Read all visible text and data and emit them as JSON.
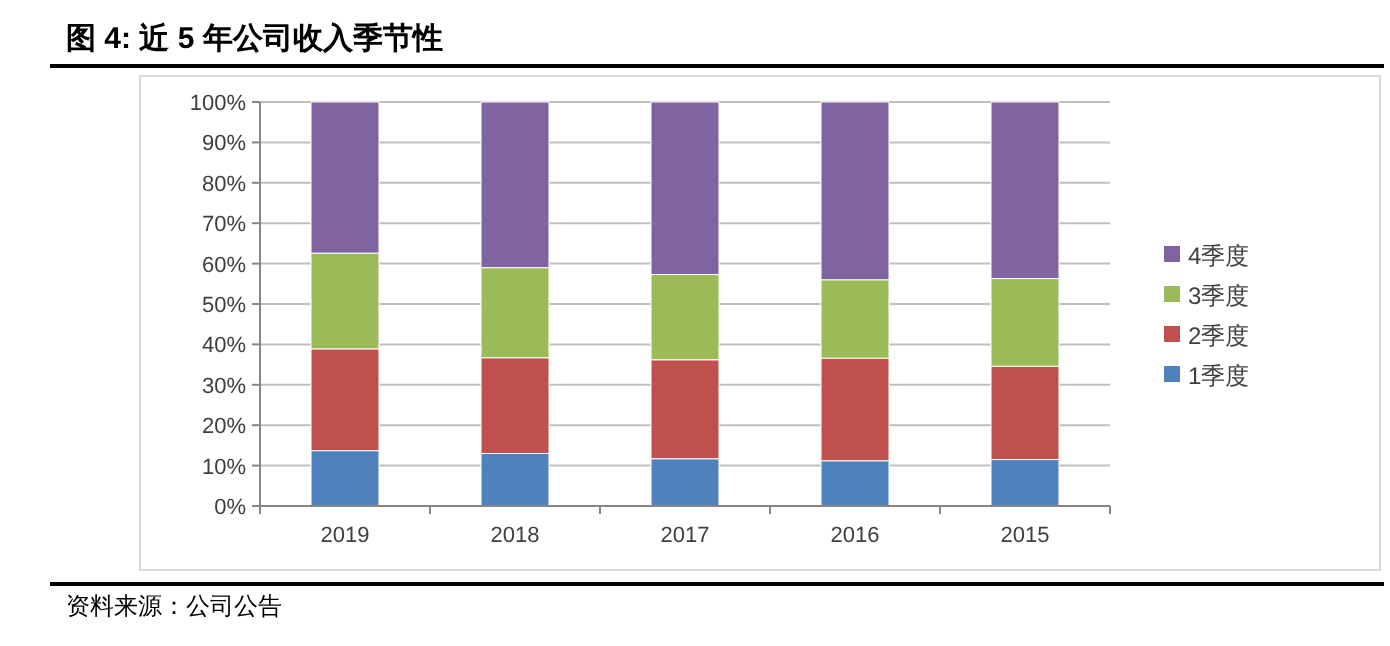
{
  "chart_data": {
    "type": "bar",
    "title": "图 4:  近 5 年公司收入季节性",
    "stacked": true,
    "categories": [
      "2019",
      "2018",
      "2017",
      "2016",
      "2015"
    ],
    "series": [
      {
        "name": "1季度",
        "color": "#4f81bd",
        "values": [
          13.7,
          13.0,
          11.7,
          11.2,
          11.5
        ]
      },
      {
        "name": "2季度",
        "color": "#c0504d",
        "values": [
          25.2,
          23.7,
          24.5,
          25.4,
          23.1
        ]
      },
      {
        "name": "3季度",
        "color": "#9bbb59",
        "values": [
          23.7,
          22.3,
          21.1,
          19.4,
          21.7
        ]
      },
      {
        "name": "4季度",
        "color": "#8064a2",
        "values": [
          37.4,
          41.0,
          42.7,
          44.0,
          43.7
        ]
      }
    ],
    "ylim": [
      0,
      100
    ],
    "yticks": [
      {
        "value": 0,
        "label": "0%"
      },
      {
        "value": 10,
        "label": "10%"
      },
      {
        "value": 20,
        "label": "20%"
      },
      {
        "value": 30,
        "label": "30%"
      },
      {
        "value": 40,
        "label": "40%"
      },
      {
        "value": 50,
        "label": "50%"
      },
      {
        "value": 60,
        "label": "60%"
      },
      {
        "value": 70,
        "label": "70%"
      },
      {
        "value": 80,
        "label": "80%"
      },
      {
        "value": 90,
        "label": "90%"
      },
      {
        "value": 100,
        "label": "100%"
      }
    ],
    "grid": "y",
    "legend": "right",
    "annotations": [
      "资料来源：公司公告"
    ]
  }
}
